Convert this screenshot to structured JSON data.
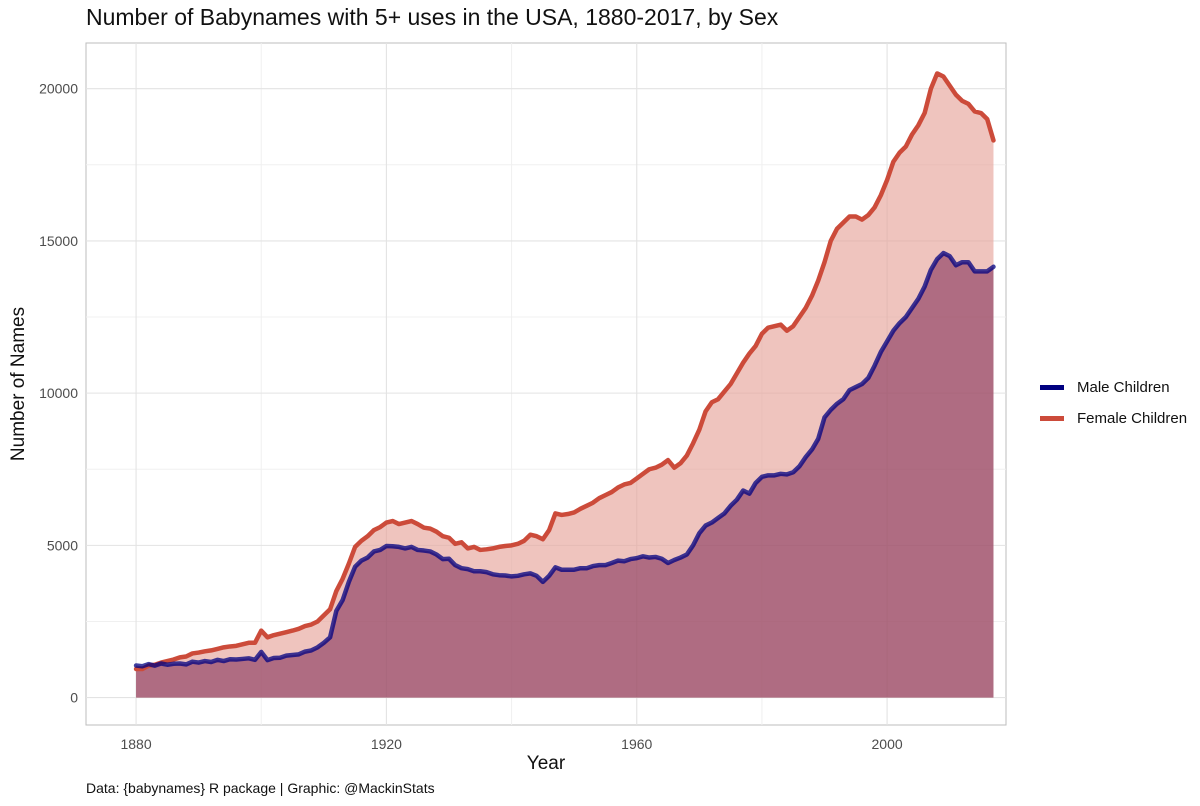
{
  "chart_data": {
    "type": "area",
    "title": "Number of Babynames with 5+ uses in the USA, 1880-2017, by Sex",
    "xlabel": "Year",
    "ylabel": "Number of Names",
    "xlim": [
      1872,
      2019
    ],
    "ylim": [
      -900,
      21500
    ],
    "x_ticks": [
      1880,
      1920,
      1960,
      2000
    ],
    "y_ticks": [
      0,
      5000,
      10000,
      15000,
      20000
    ],
    "grid": true,
    "legend_position": "right",
    "caption": "Data: {babynames} R package | Graphic: @MackinStats",
    "x": [
      1880,
      1881,
      1882,
      1883,
      1884,
      1885,
      1886,
      1887,
      1888,
      1889,
      1890,
      1891,
      1892,
      1893,
      1894,
      1895,
      1896,
      1897,
      1898,
      1899,
      1900,
      1901,
      1902,
      1903,
      1904,
      1905,
      1906,
      1907,
      1908,
      1909,
      1910,
      1911,
      1912,
      1913,
      1914,
      1915,
      1916,
      1917,
      1918,
      1919,
      1920,
      1921,
      1922,
      1923,
      1924,
      1925,
      1926,
      1927,
      1928,
      1929,
      1930,
      1931,
      1932,
      1933,
      1934,
      1935,
      1936,
      1937,
      1938,
      1939,
      1940,
      1941,
      1942,
      1943,
      1944,
      1945,
      1946,
      1947,
      1948,
      1949,
      1950,
      1951,
      1952,
      1953,
      1954,
      1955,
      1956,
      1957,
      1958,
      1959,
      1960,
      1961,
      1962,
      1963,
      1964,
      1965,
      1966,
      1967,
      1968,
      1969,
      1970,
      1971,
      1972,
      1973,
      1974,
      1975,
      1976,
      1977,
      1978,
      1979,
      1980,
      1981,
      1982,
      1983,
      1984,
      1985,
      1986,
      1987,
      1988,
      1989,
      1990,
      1991,
      1992,
      1993,
      1994,
      1995,
      1996,
      1997,
      1998,
      1999,
      2000,
      2001,
      2002,
      2003,
      2004,
      2005,
      2006,
      2007,
      2008,
      2009,
      2010,
      2011,
      2012,
      2013,
      2014,
      2015,
      2016,
      2017
    ],
    "series": [
      {
        "name": "Male Children",
        "color": "#000080",
        "fill": "#7a2550",
        "values": [
          1055,
          1030,
          1100,
          1050,
          1120,
          1080,
          1110,
          1120,
          1090,
          1180,
          1150,
          1200,
          1170,
          1240,
          1200,
          1260,
          1250,
          1270,
          1290,
          1240,
          1500,
          1230,
          1300,
          1310,
          1380,
          1400,
          1420,
          1510,
          1550,
          1650,
          1800,
          1980,
          2850,
          3200,
          3800,
          4300,
          4500,
          4600,
          4800,
          4850,
          4980,
          4970,
          4950,
          4900,
          4950,
          4850,
          4830,
          4800,
          4700,
          4550,
          4560,
          4350,
          4250,
          4220,
          4150,
          4150,
          4120,
          4050,
          4020,
          4010,
          3980,
          4000,
          4050,
          4080,
          4000,
          3800,
          4000,
          4280,
          4200,
          4200,
          4200,
          4250,
          4250,
          4320,
          4350,
          4350,
          4420,
          4500,
          4480,
          4550,
          4580,
          4640,
          4600,
          4620,
          4560,
          4420,
          4520,
          4600,
          4700,
          5000,
          5400,
          5650,
          5750,
          5900,
          6050,
          6300,
          6500,
          6800,
          6700,
          7050,
          7250,
          7300,
          7300,
          7350,
          7330,
          7400,
          7600,
          7900,
          8150,
          8500,
          9200,
          9450,
          9650,
          9800,
          10100,
          10200,
          10300,
          10500,
          10900,
          11350,
          11700,
          12050,
          12300,
          12500,
          12800,
          13100,
          13500,
          14050,
          14400,
          14600,
          14500,
          14200,
          14300,
          14300,
          14000,
          14000,
          14000,
          14150
        ]
      },
      {
        "name": "Female Children",
        "color": "#cc4b3a",
        "fill": "#e7a59b",
        "values": [
          940,
          940,
          1050,
          1080,
          1150,
          1200,
          1250,
          1320,
          1350,
          1450,
          1480,
          1520,
          1550,
          1600,
          1650,
          1680,
          1700,
          1750,
          1800,
          1800,
          2200,
          1980,
          2050,
          2100,
          2150,
          2200,
          2260,
          2350,
          2400,
          2500,
          2700,
          2900,
          3500,
          3900,
          4400,
          4950,
          5150,
          5300,
          5500,
          5600,
          5750,
          5800,
          5700,
          5750,
          5800,
          5700,
          5580,
          5550,
          5450,
          5300,
          5250,
          5050,
          5100,
          4900,
          4950,
          4850,
          4870,
          4900,
          4950,
          4980,
          5000,
          5050,
          5150,
          5350,
          5300,
          5200,
          5500,
          6050,
          6000,
          6030,
          6080,
          6200,
          6300,
          6400,
          6550,
          6650,
          6750,
          6900,
          7000,
          7050,
          7200,
          7350,
          7500,
          7550,
          7650,
          7800,
          7550,
          7700,
          7950,
          8350,
          8800,
          9400,
          9700,
          9800,
          10050,
          10300,
          10650,
          11000,
          11300,
          11550,
          11950,
          12150,
          12200,
          12250,
          12050,
          12200,
          12500,
          12800,
          13200,
          13700,
          14300,
          15000,
          15400,
          15600,
          15800,
          15800,
          15700,
          15850,
          16100,
          16500,
          17000,
          17600,
          17900,
          18100,
          18500,
          18800,
          19200,
          20000,
          20500,
          20400,
          20100,
          19800,
          19600,
          19500,
          19250,
          19200,
          19000,
          18300
        ]
      }
    ]
  }
}
